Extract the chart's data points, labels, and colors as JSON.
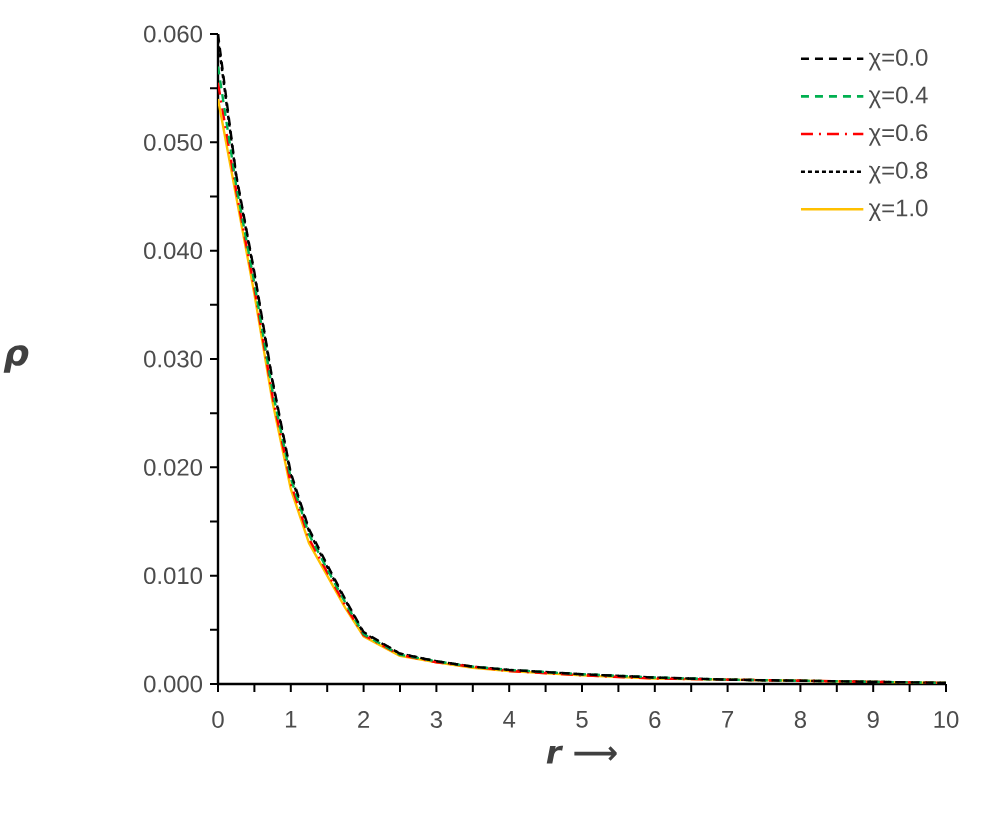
{
  "chart_data": {
    "type": "line",
    "xlabel": "r ⟶",
    "ylabel": "ρ",
    "x": [
      0,
      0.25,
      0.5,
      0.75,
      1,
      1.25,
      1.5,
      1.75,
      2,
      2.5,
      3,
      3.5,
      4,
      5,
      6,
      7,
      8,
      9,
      10
    ],
    "series": [
      {
        "name": "χ=0.0",
        "color": "#000000",
        "line_style": "dashed",
        "values": [
          0.06,
          0.047,
          0.038,
          0.028,
          0.0195,
          0.0143,
          0.011,
          0.0078,
          0.0048,
          0.0028,
          0.0021,
          0.0016,
          0.0013,
          0.0009,
          0.0006,
          0.0004,
          0.0003,
          0.0002,
          0.0001
        ]
      },
      {
        "name": "χ=0.4",
        "color": "#00b050",
        "line_style": "dashed",
        "values": [
          0.057,
          0.046,
          0.037,
          0.027,
          0.019,
          0.0138,
          0.0106,
          0.0075,
          0.0046,
          0.0027,
          0.0021,
          0.0016,
          0.0013,
          0.0009,
          0.0006,
          0.0004,
          0.0003,
          0.0002,
          0.0001
        ]
      },
      {
        "name": "χ=0.6",
        "color": "#ff0000",
        "line_style": "dashdot",
        "values": [
          0.0555,
          0.0455,
          0.0365,
          0.0265,
          0.0185,
          0.0134,
          0.0103,
          0.0072,
          0.0045,
          0.0027,
          0.002,
          0.0016,
          0.0012,
          0.0008,
          0.0005,
          0.0004,
          0.0003,
          0.0002,
          0.0001
        ]
      },
      {
        "name": "χ=0.8",
        "color": "#000000",
        "line_style": "dotted",
        "values": [
          0.0595,
          0.0468,
          0.0378,
          0.0278,
          0.0193,
          0.0141,
          0.0108,
          0.0077,
          0.0047,
          0.0028,
          0.0021,
          0.0016,
          0.0013,
          0.0009,
          0.0006,
          0.0004,
          0.0003,
          0.0002,
          0.0001
        ]
      },
      {
        "name": "χ=1.0",
        "color": "#ffc000",
        "line_style": "solid",
        "values": [
          0.054,
          0.045,
          0.036,
          0.026,
          0.018,
          0.013,
          0.01,
          0.007,
          0.0044,
          0.0026,
          0.002,
          0.0015,
          0.0012,
          0.0008,
          0.0005,
          0.0004,
          0.0003,
          0.0002,
          0.0001
        ]
      }
    ],
    "xlim": [
      0,
      10
    ],
    "xticks": [
      0,
      1,
      2,
      3,
      4,
      5,
      6,
      7,
      8,
      9,
      10
    ],
    "ylim": [
      0,
      0.06
    ],
    "yticks": [
      {
        "value": 0,
        "label": "0.000"
      },
      {
        "value": 0.01,
        "label": "0.010"
      },
      {
        "value": 0.02,
        "label": "0.020"
      },
      {
        "value": 0.03,
        "label": "0.030"
      },
      {
        "value": 0.04,
        "label": "0.040"
      },
      {
        "value": 0.05,
        "label": "0.050"
      },
      {
        "value": 0.06,
        "label": "0.060"
      }
    ],
    "grid": false,
    "legend": "top right"
  }
}
